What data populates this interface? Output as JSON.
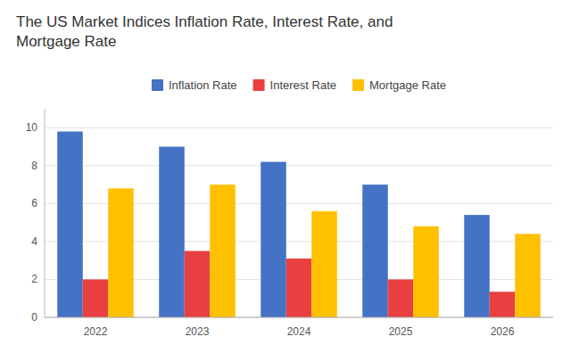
{
  "chart_data": {
    "type": "bar",
    "title": "The US Market Indices Inflation Rate, Interest Rate, and\nMortgage Rate",
    "categories": [
      "2022",
      "2023",
      "2024",
      "2025",
      "2026"
    ],
    "series": [
      {
        "name": "Inflation Rate",
        "color": "#4472C4",
        "values": [
          9.8,
          9.0,
          8.2,
          7.0,
          5.4
        ]
      },
      {
        "name": "Interest Rate",
        "color": "#E84040",
        "values": [
          2.0,
          3.5,
          3.1,
          2.0,
          1.35
        ]
      },
      {
        "name": "Mortgage Rate",
        "color": "#FFC000",
        "values": [
          6.8,
          7.0,
          5.6,
          4.8,
          4.4
        ]
      }
    ],
    "ylim": [
      0,
      11
    ],
    "yticks": [
      0,
      2,
      4,
      6,
      8,
      10
    ],
    "grid": true,
    "legend": "top"
  }
}
